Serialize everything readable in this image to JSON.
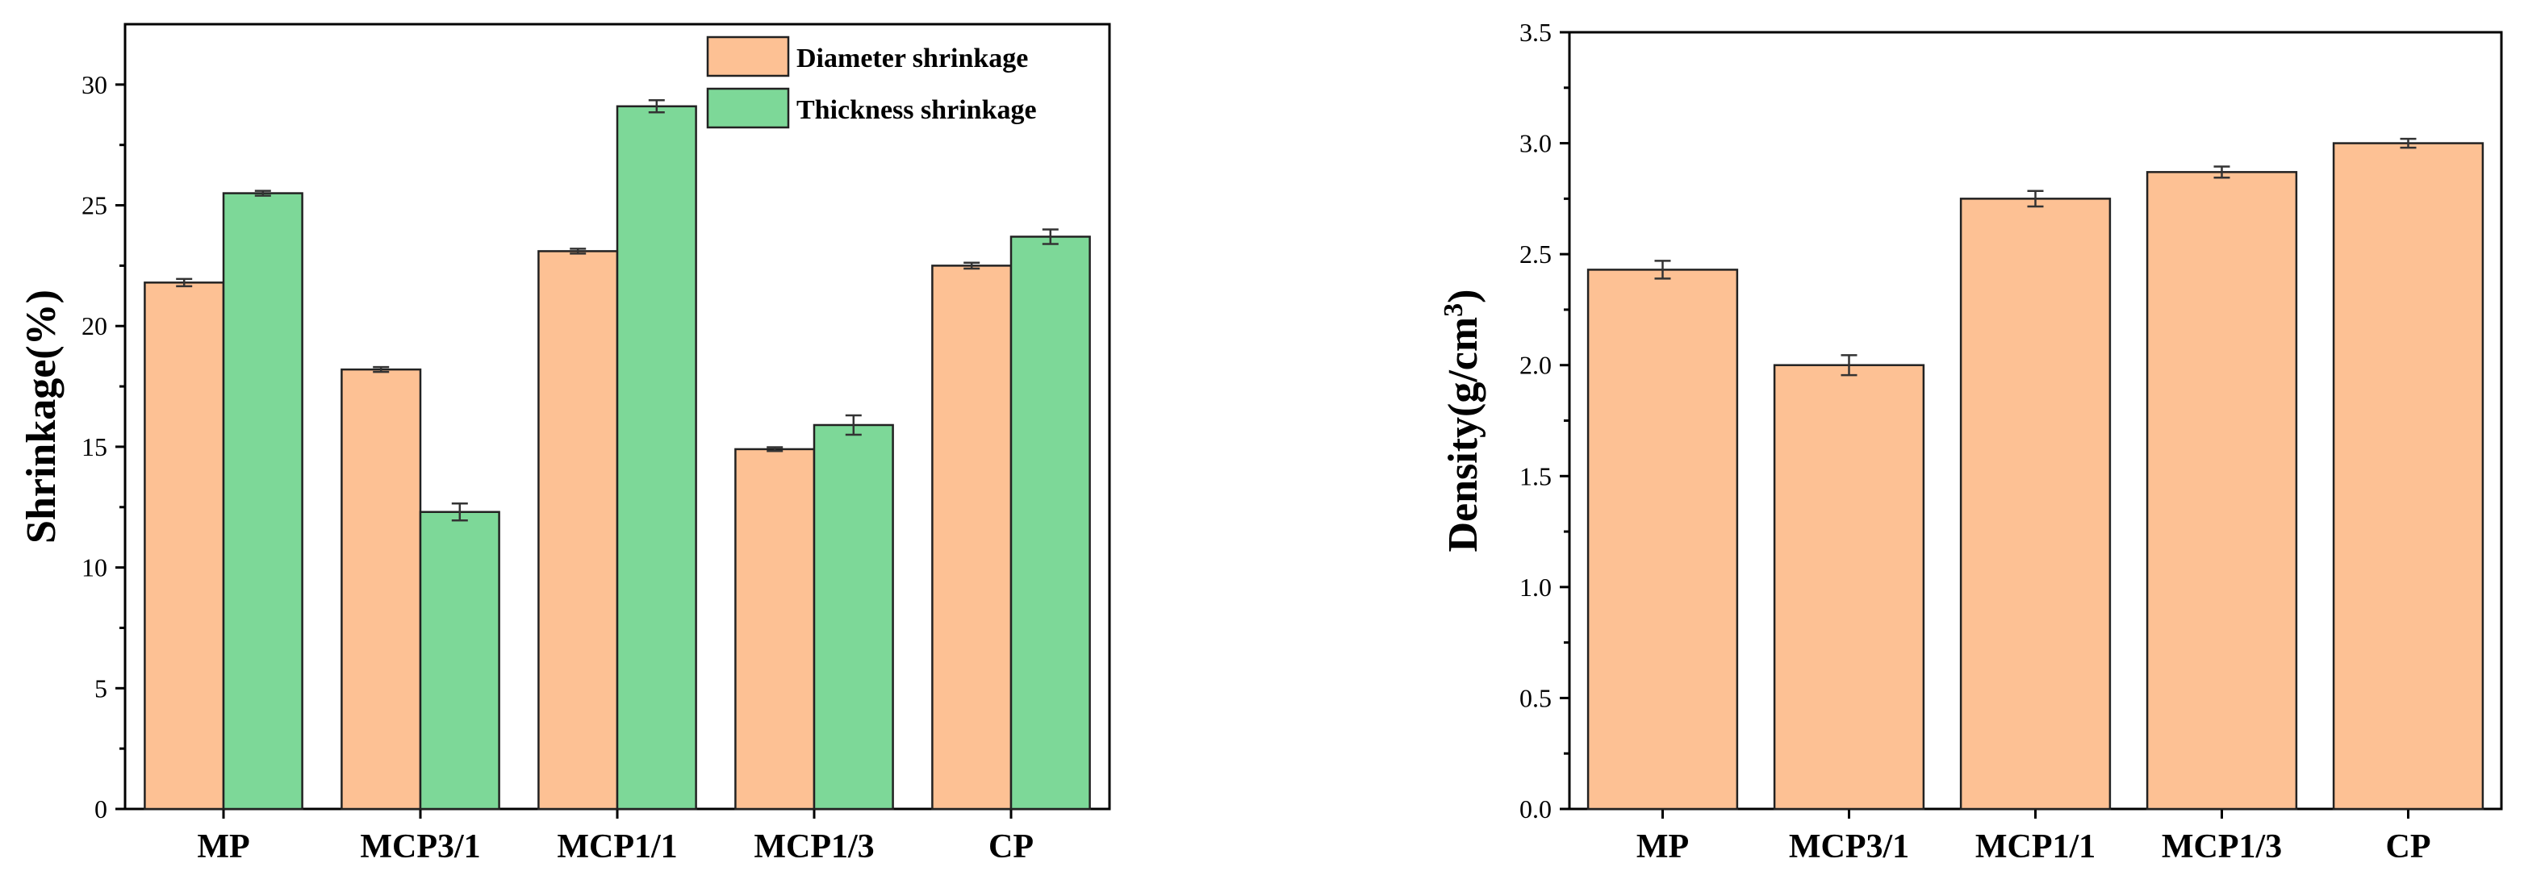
{
  "colors": {
    "diameter": "#FDC194",
    "thickness": "#7DD898"
  },
  "chart_data": [
    {
      "type": "bar",
      "title": "",
      "xlabel": "",
      "ylabel": "Shrinkage(%)",
      "ylim": [
        0,
        32.5
      ],
      "yticks": [
        0,
        5,
        10,
        15,
        20,
        25,
        30
      ],
      "ytick_labels": [
        "0",
        "5",
        "10",
        "15",
        "20",
        "25",
        "30"
      ],
      "categories": [
        "MP",
        "MCP3/1",
        "MCP1/1",
        "MCP1/3",
        "CP"
      ],
      "legend_position": "top-right",
      "series": [
        {
          "name": "Diameter shrinkage",
          "color": "#FDC194",
          "values": [
            21.8,
            18.2,
            23.1,
            14.9,
            22.5
          ],
          "errors": [
            0.15,
            0.1,
            0.1,
            0.08,
            0.12
          ]
        },
        {
          "name": "Thickness shrinkage",
          "color": "#7DD898",
          "values": [
            25.5,
            12.3,
            29.1,
            15.9,
            23.7
          ],
          "errors": [
            0.1,
            0.35,
            0.25,
            0.4,
            0.3
          ]
        }
      ]
    },
    {
      "type": "bar",
      "title": "",
      "xlabel": "",
      "ylabel": "Density(g/cm³)",
      "ylabel_main": "Density(g/cm",
      "ylabel_sup": "3",
      "ylabel_end": ")",
      "ylim": [
        0,
        3.5
      ],
      "yticks": [
        0,
        0.5,
        1.0,
        1.5,
        2.0,
        2.5,
        3.0,
        3.5
      ],
      "ytick_labels": [
        "0.0",
        "0.5",
        "1.0",
        "1.5",
        "2.0",
        "2.5",
        "3.0",
        "3.5"
      ],
      "categories": [
        "MP",
        "MCP3/1",
        "MCP1/1",
        "MCP1/3",
        "CP"
      ],
      "series": [
        {
          "name": "Density",
          "color": "#FDC194",
          "values": [
            2.43,
            2.0,
            2.75,
            2.87,
            3.0
          ],
          "errors": [
            0.04,
            0.045,
            0.035,
            0.025,
            0.02
          ]
        }
      ]
    }
  ]
}
